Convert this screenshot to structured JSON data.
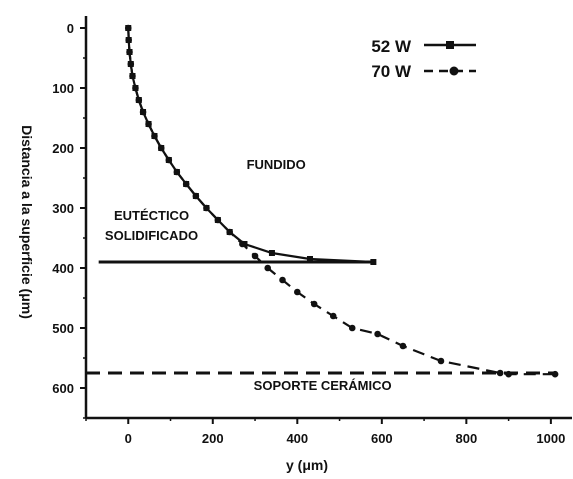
{
  "chart_data": {
    "type": "line",
    "xlabel": "y (μm)",
    "ylabel": "Distancia a la superficie (μm)",
    "xlim": [
      -100,
      1050
    ],
    "ylim": [
      650,
      -20
    ],
    "y_inverted": true,
    "xticks": [
      0,
      200,
      400,
      600,
      800,
      1000
    ],
    "yticks": [
      0,
      100,
      200,
      300,
      400,
      500,
      600
    ],
    "legend_position": "top-right",
    "series": [
      {
        "name": "52 W",
        "line_style": "solid",
        "marker": "square",
        "color": "#111111",
        "points": [
          [
            0,
            0
          ],
          [
            1,
            20
          ],
          [
            3,
            40
          ],
          [
            6,
            60
          ],
          [
            10,
            80
          ],
          [
            17,
            100
          ],
          [
            25,
            120
          ],
          [
            35,
            140
          ],
          [
            48,
            160
          ],
          [
            62,
            180
          ],
          [
            78,
            200
          ],
          [
            96,
            220
          ],
          [
            115,
            240
          ],
          [
            137,
            260
          ],
          [
            160,
            280
          ],
          [
            185,
            300
          ],
          [
            212,
            320
          ],
          [
            240,
            340
          ],
          [
            275,
            360
          ],
          [
            340,
            375
          ],
          [
            430,
            385
          ],
          [
            580,
            390
          ]
        ]
      },
      {
        "name": "70 W",
        "line_style": "dashed",
        "marker": "circle",
        "color": "#111111",
        "points": [
          [
            0,
            0
          ],
          [
            1,
            20
          ],
          [
            3,
            40
          ],
          [
            6,
            60
          ],
          [
            10,
            80
          ],
          [
            17,
            100
          ],
          [
            25,
            120
          ],
          [
            35,
            140
          ],
          [
            48,
            160
          ],
          [
            62,
            180
          ],
          [
            78,
            200
          ],
          [
            96,
            220
          ],
          [
            115,
            240
          ],
          [
            137,
            260
          ],
          [
            160,
            280
          ],
          [
            185,
            300
          ],
          [
            212,
            320
          ],
          [
            240,
            340
          ],
          [
            270,
            360
          ],
          [
            300,
            380
          ],
          [
            330,
            400
          ],
          [
            365,
            420
          ],
          [
            400,
            440
          ],
          [
            440,
            460
          ],
          [
            485,
            480
          ],
          [
            530,
            500
          ],
          [
            590,
            510
          ],
          [
            650,
            530
          ],
          [
            740,
            555
          ],
          [
            880,
            575
          ],
          [
            900,
            577
          ],
          [
            1010,
            577
          ]
        ]
      }
    ],
    "reference_lines": [
      {
        "name": "eutectic",
        "y": 390,
        "x_from": -70,
        "x_to": 580,
        "style": "solid"
      },
      {
        "name": "ceramic",
        "y": 575,
        "x_from": -100,
        "x_to": 1010,
        "style": "dashed"
      }
    ],
    "annotations": [
      {
        "text": "FUNDIDO",
        "x": 350,
        "y": 235
      },
      {
        "text": "EUTÉCTICO",
        "x": 55,
        "y": 320
      },
      {
        "text": "SOLIDIFICADO",
        "x": 55,
        "y": 353
      },
      {
        "text": "SOPORTE CERÁMICO",
        "x": 460,
        "y": 603
      }
    ]
  }
}
